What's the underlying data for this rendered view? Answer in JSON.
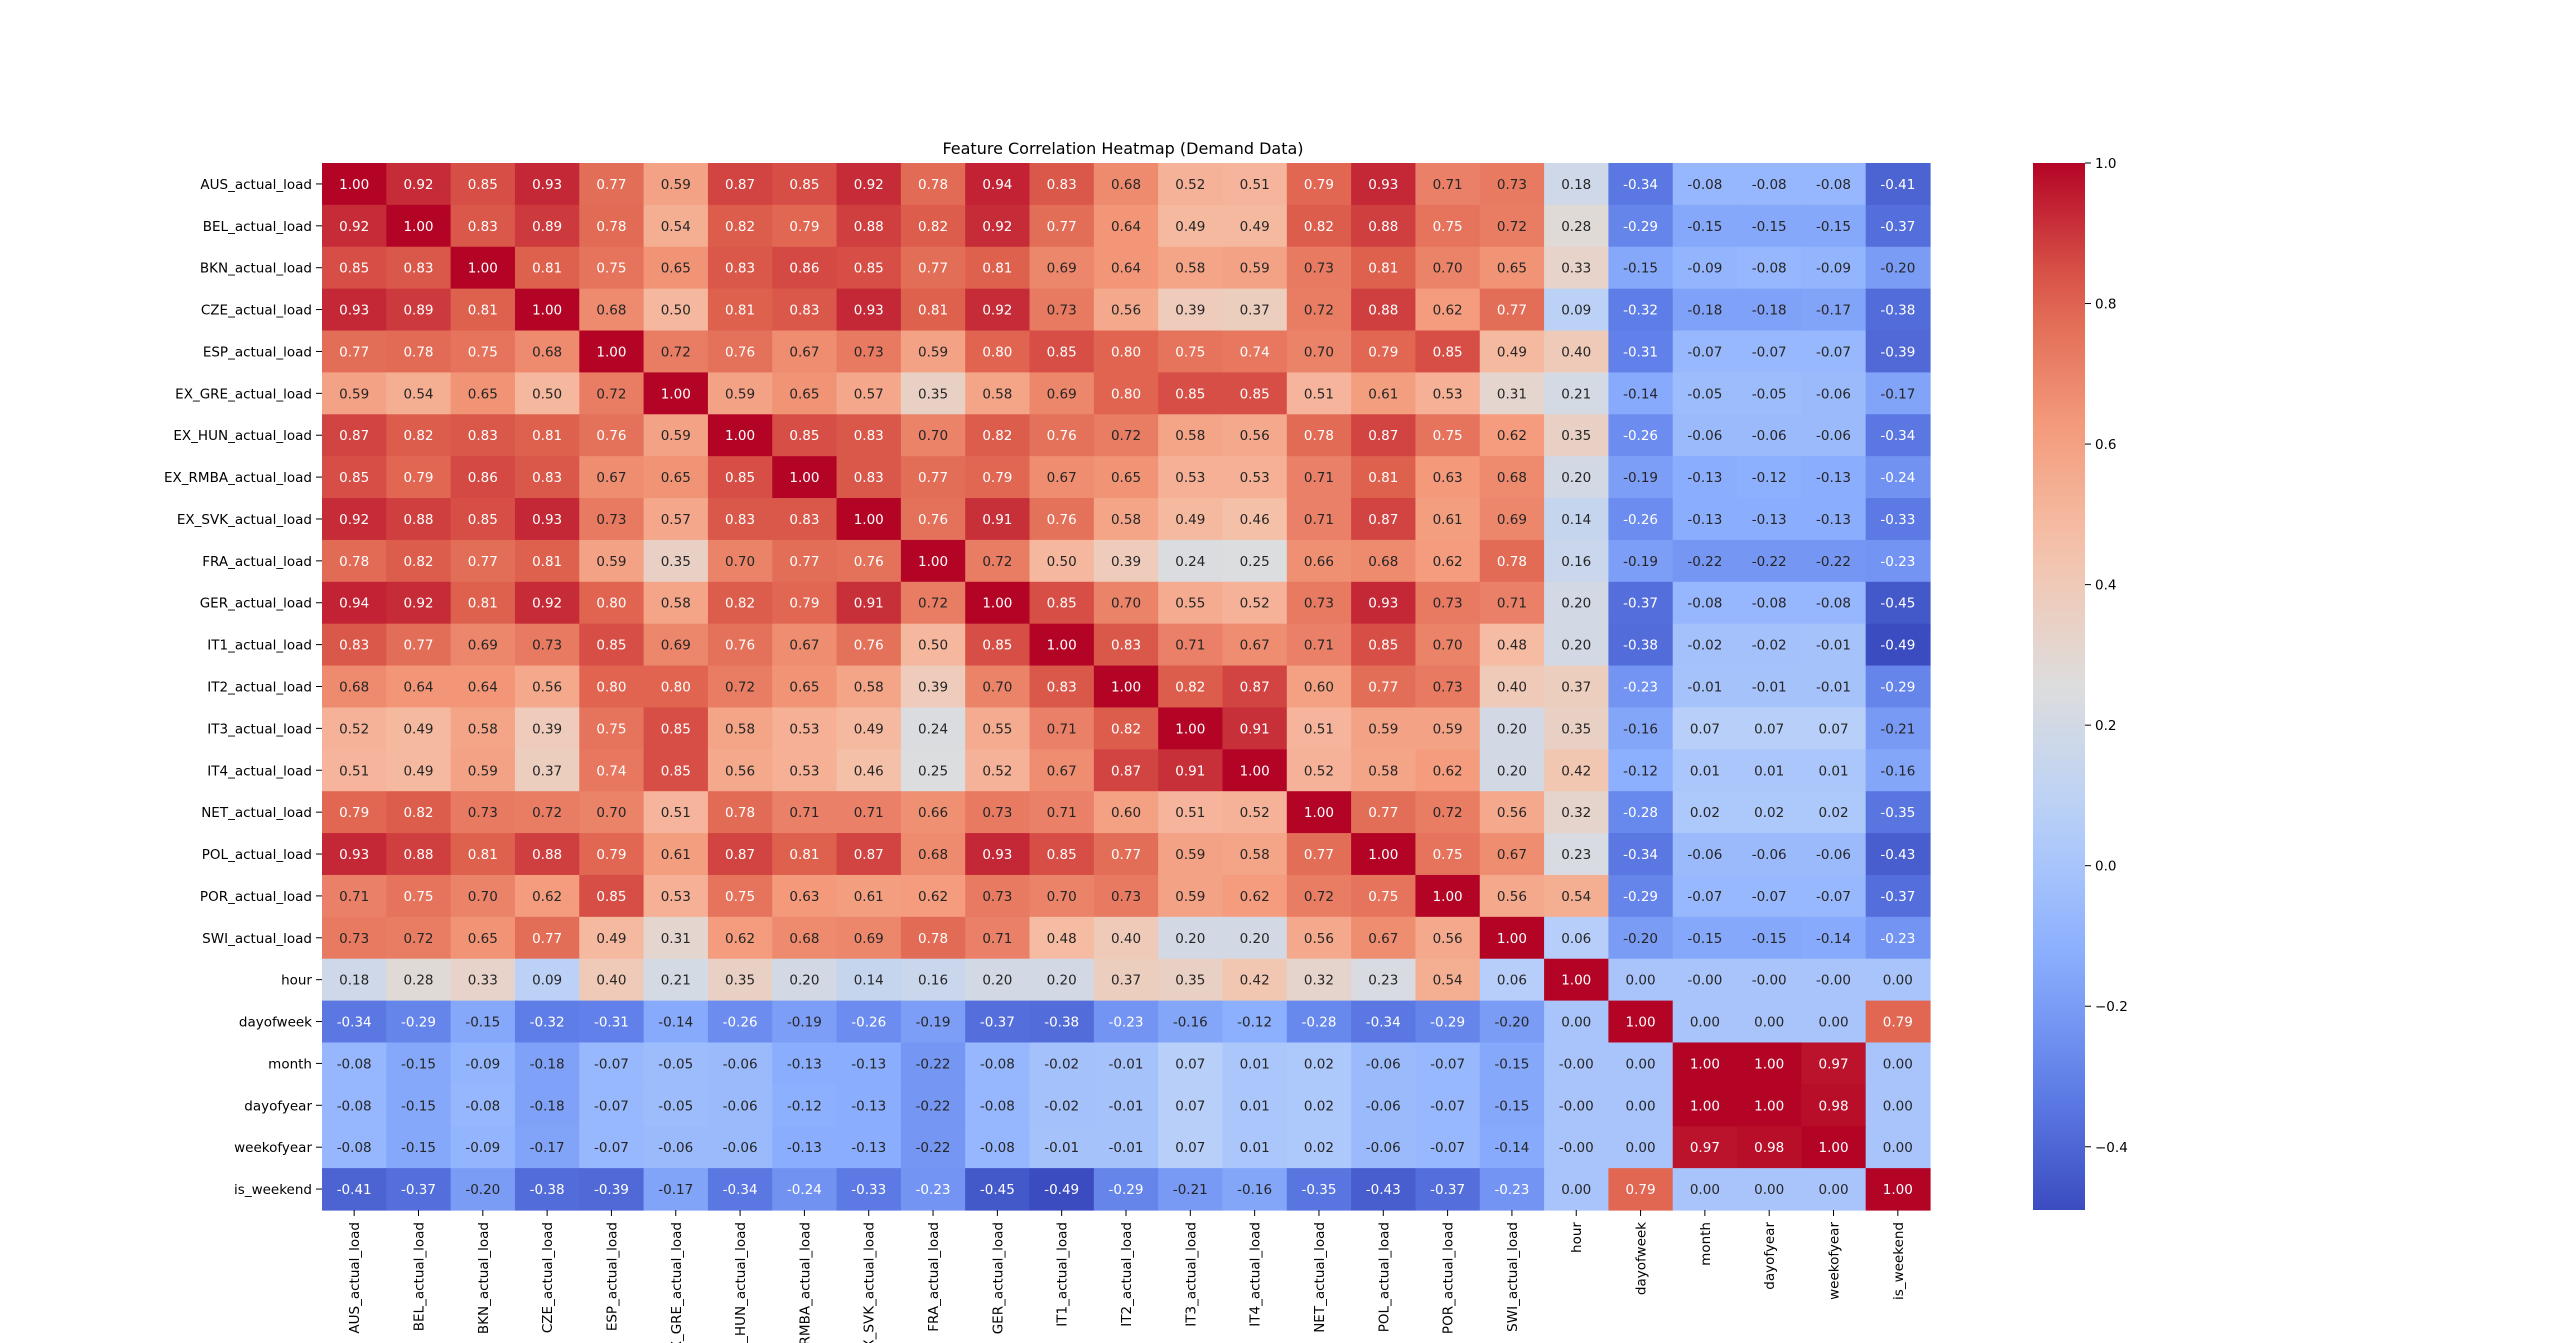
{
  "chart_data": {
    "type": "heatmap",
    "title": "Feature Correlation Heatmap (Demand Data)",
    "xlabel": "",
    "ylabel": "",
    "colormap": "coolwarm",
    "vmin": -0.49,
    "vmax": 1.0,
    "colorbar_ticks": [
      "1.0",
      "0.8",
      "0.6",
      "0.4",
      "0.2",
      "0.0",
      "−0.2",
      "−0.4"
    ],
    "labels": [
      "AUS_actual_load",
      "BEL_actual_load",
      "BKN_actual_load",
      "CZE_actual_load",
      "ESP_actual_load",
      "EX_GRE_actual_load",
      "EX_HUN_actual_load",
      "EX_RMBA_actual_load",
      "EX_SVK_actual_load",
      "FRA_actual_load",
      "GER_actual_load",
      "IT1_actual_load",
      "IT2_actual_load",
      "IT3_actual_load",
      "IT4_actual_load",
      "NET_actual_load",
      "POL_actual_load",
      "POR_actual_load",
      "SWI_actual_load",
      "hour",
      "dayofweek",
      "month",
      "dayofyear",
      "weekofyear",
      "is_weekend"
    ],
    "matrix": [
      [
        "1.00",
        "0.92",
        "0.85",
        "0.93",
        "0.77",
        "0.59",
        "0.87",
        "0.85",
        "0.92",
        "0.78",
        "0.94",
        "0.83",
        "0.68",
        "0.52",
        "0.51",
        "0.79",
        "0.93",
        "0.71",
        "0.73",
        "0.18",
        "-0.34",
        "-0.08",
        "-0.08",
        "-0.08",
        "-0.41"
      ],
      [
        "0.92",
        "1.00",
        "0.83",
        "0.89",
        "0.78",
        "0.54",
        "0.82",
        "0.79",
        "0.88",
        "0.82",
        "0.92",
        "0.77",
        "0.64",
        "0.49",
        "0.49",
        "0.82",
        "0.88",
        "0.75",
        "0.72",
        "0.28",
        "-0.29",
        "-0.15",
        "-0.15",
        "-0.15",
        "-0.37"
      ],
      [
        "0.85",
        "0.83",
        "1.00",
        "0.81",
        "0.75",
        "0.65",
        "0.83",
        "0.86",
        "0.85",
        "0.77",
        "0.81",
        "0.69",
        "0.64",
        "0.58",
        "0.59",
        "0.73",
        "0.81",
        "0.70",
        "0.65",
        "0.33",
        "-0.15",
        "-0.09",
        "-0.08",
        "-0.09",
        "-0.20"
      ],
      [
        "0.93",
        "0.89",
        "0.81",
        "1.00",
        "0.68",
        "0.50",
        "0.81",
        "0.83",
        "0.93",
        "0.81",
        "0.92",
        "0.73",
        "0.56",
        "0.39",
        "0.37",
        "0.72",
        "0.88",
        "0.62",
        "0.77",
        "0.09",
        "-0.32",
        "-0.18",
        "-0.18",
        "-0.17",
        "-0.38"
      ],
      [
        "0.77",
        "0.78",
        "0.75",
        "0.68",
        "1.00",
        "0.72",
        "0.76",
        "0.67",
        "0.73",
        "0.59",
        "0.80",
        "0.85",
        "0.80",
        "0.75",
        "0.74",
        "0.70",
        "0.79",
        "0.85",
        "0.49",
        "0.40",
        "-0.31",
        "-0.07",
        "-0.07",
        "-0.07",
        "-0.39"
      ],
      [
        "0.59",
        "0.54",
        "0.65",
        "0.50",
        "0.72",
        "1.00",
        "0.59",
        "0.65",
        "0.57",
        "0.35",
        "0.58",
        "0.69",
        "0.80",
        "0.85",
        "0.85",
        "0.51",
        "0.61",
        "0.53",
        "0.31",
        "0.21",
        "-0.14",
        "-0.05",
        "-0.05",
        "-0.06",
        "-0.17"
      ],
      [
        "0.87",
        "0.82",
        "0.83",
        "0.81",
        "0.76",
        "0.59",
        "1.00",
        "0.85",
        "0.83",
        "0.70",
        "0.82",
        "0.76",
        "0.72",
        "0.58",
        "0.56",
        "0.78",
        "0.87",
        "0.75",
        "0.62",
        "0.35",
        "-0.26",
        "-0.06",
        "-0.06",
        "-0.06",
        "-0.34"
      ],
      [
        "0.85",
        "0.79",
        "0.86",
        "0.83",
        "0.67",
        "0.65",
        "0.85",
        "1.00",
        "0.83",
        "0.77",
        "0.79",
        "0.67",
        "0.65",
        "0.53",
        "0.53",
        "0.71",
        "0.81",
        "0.63",
        "0.68",
        "0.20",
        "-0.19",
        "-0.13",
        "-0.12",
        "-0.13",
        "-0.24"
      ],
      [
        "0.92",
        "0.88",
        "0.85",
        "0.93",
        "0.73",
        "0.57",
        "0.83",
        "0.83",
        "1.00",
        "0.76",
        "0.91",
        "0.76",
        "0.58",
        "0.49",
        "0.46",
        "0.71",
        "0.87",
        "0.61",
        "0.69",
        "0.14",
        "-0.26",
        "-0.13",
        "-0.13",
        "-0.13",
        "-0.33"
      ],
      [
        "0.78",
        "0.82",
        "0.77",
        "0.81",
        "0.59",
        "0.35",
        "0.70",
        "0.77",
        "0.76",
        "1.00",
        "0.72",
        "0.50",
        "0.39",
        "0.24",
        "0.25",
        "0.66",
        "0.68",
        "0.62",
        "0.78",
        "0.16",
        "-0.19",
        "-0.22",
        "-0.22",
        "-0.22",
        "-0.23"
      ],
      [
        "0.94",
        "0.92",
        "0.81",
        "0.92",
        "0.80",
        "0.58",
        "0.82",
        "0.79",
        "0.91",
        "0.72",
        "1.00",
        "0.85",
        "0.70",
        "0.55",
        "0.52",
        "0.73",
        "0.93",
        "0.73",
        "0.71",
        "0.20",
        "-0.37",
        "-0.08",
        "-0.08",
        "-0.08",
        "-0.45"
      ],
      [
        "0.83",
        "0.77",
        "0.69",
        "0.73",
        "0.85",
        "0.69",
        "0.76",
        "0.67",
        "0.76",
        "0.50",
        "0.85",
        "1.00",
        "0.83",
        "0.71",
        "0.67",
        "0.71",
        "0.85",
        "0.70",
        "0.48",
        "0.20",
        "-0.38",
        "-0.02",
        "-0.02",
        "-0.01",
        "-0.49"
      ],
      [
        "0.68",
        "0.64",
        "0.64",
        "0.56",
        "0.80",
        "0.80",
        "0.72",
        "0.65",
        "0.58",
        "0.39",
        "0.70",
        "0.83",
        "1.00",
        "0.82",
        "0.87",
        "0.60",
        "0.77",
        "0.73",
        "0.40",
        "0.37",
        "-0.23",
        "-0.01",
        "-0.01",
        "-0.01",
        "-0.29"
      ],
      [
        "0.52",
        "0.49",
        "0.58",
        "0.39",
        "0.75",
        "0.85",
        "0.58",
        "0.53",
        "0.49",
        "0.24",
        "0.55",
        "0.71",
        "0.82",
        "1.00",
        "0.91",
        "0.51",
        "0.59",
        "0.59",
        "0.20",
        "0.35",
        "-0.16",
        "0.07",
        "0.07",
        "0.07",
        "-0.21"
      ],
      [
        "0.51",
        "0.49",
        "0.59",
        "0.37",
        "0.74",
        "0.85",
        "0.56",
        "0.53",
        "0.46",
        "0.25",
        "0.52",
        "0.67",
        "0.87",
        "0.91",
        "1.00",
        "0.52",
        "0.58",
        "0.62",
        "0.20",
        "0.42",
        "-0.12",
        "0.01",
        "0.01",
        "0.01",
        "-0.16"
      ],
      [
        "0.79",
        "0.82",
        "0.73",
        "0.72",
        "0.70",
        "0.51",
        "0.78",
        "0.71",
        "0.71",
        "0.66",
        "0.73",
        "0.71",
        "0.60",
        "0.51",
        "0.52",
        "1.00",
        "0.77",
        "0.72",
        "0.56",
        "0.32",
        "-0.28",
        "0.02",
        "0.02",
        "0.02",
        "-0.35"
      ],
      [
        "0.93",
        "0.88",
        "0.81",
        "0.88",
        "0.79",
        "0.61",
        "0.87",
        "0.81",
        "0.87",
        "0.68",
        "0.93",
        "0.85",
        "0.77",
        "0.59",
        "0.58",
        "0.77",
        "1.00",
        "0.75",
        "0.67",
        "0.23",
        "-0.34",
        "-0.06",
        "-0.06",
        "-0.06",
        "-0.43"
      ],
      [
        "0.71",
        "0.75",
        "0.70",
        "0.62",
        "0.85",
        "0.53",
        "0.75",
        "0.63",
        "0.61",
        "0.62",
        "0.73",
        "0.70",
        "0.73",
        "0.59",
        "0.62",
        "0.72",
        "0.75",
        "1.00",
        "0.56",
        "0.54",
        "-0.29",
        "-0.07",
        "-0.07",
        "-0.07",
        "-0.37"
      ],
      [
        "0.73",
        "0.72",
        "0.65",
        "0.77",
        "0.49",
        "0.31",
        "0.62",
        "0.68",
        "0.69",
        "0.78",
        "0.71",
        "0.48",
        "0.40",
        "0.20",
        "0.20",
        "0.56",
        "0.67",
        "0.56",
        "1.00",
        "0.06",
        "-0.20",
        "-0.15",
        "-0.15",
        "-0.14",
        "-0.23"
      ],
      [
        "0.18",
        "0.28",
        "0.33",
        "0.09",
        "0.40",
        "0.21",
        "0.35",
        "0.20",
        "0.14",
        "0.16",
        "0.20",
        "0.20",
        "0.37",
        "0.35",
        "0.42",
        "0.32",
        "0.23",
        "0.54",
        "0.06",
        "1.00",
        "0.00",
        "-0.00",
        "-0.00",
        "-0.00",
        "0.00"
      ],
      [
        "-0.34",
        "-0.29",
        "-0.15",
        "-0.32",
        "-0.31",
        "-0.14",
        "-0.26",
        "-0.19",
        "-0.26",
        "-0.19",
        "-0.37",
        "-0.38",
        "-0.23",
        "-0.16",
        "-0.12",
        "-0.28",
        "-0.34",
        "-0.29",
        "-0.20",
        "0.00",
        "1.00",
        "0.00",
        "0.00",
        "0.00",
        "0.79"
      ],
      [
        "-0.08",
        "-0.15",
        "-0.09",
        "-0.18",
        "-0.07",
        "-0.05",
        "-0.06",
        "-0.13",
        "-0.13",
        "-0.22",
        "-0.08",
        "-0.02",
        "-0.01",
        "0.07",
        "0.01",
        "0.02",
        "-0.06",
        "-0.07",
        "-0.15",
        "-0.00",
        "0.00",
        "1.00",
        "1.00",
        "0.97",
        "0.00"
      ],
      [
        "-0.08",
        "-0.15",
        "-0.08",
        "-0.18",
        "-0.07",
        "-0.05",
        "-0.06",
        "-0.12",
        "-0.13",
        "-0.22",
        "-0.08",
        "-0.02",
        "-0.01",
        "0.07",
        "0.01",
        "0.02",
        "-0.06",
        "-0.07",
        "-0.15",
        "-0.00",
        "0.00",
        "1.00",
        "1.00",
        "0.98",
        "0.00"
      ],
      [
        "-0.08",
        "-0.15",
        "-0.09",
        "-0.17",
        "-0.07",
        "-0.06",
        "-0.06",
        "-0.13",
        "-0.13",
        "-0.22",
        "-0.08",
        "-0.01",
        "-0.01",
        "0.07",
        "0.01",
        "0.02",
        "-0.06",
        "-0.07",
        "-0.14",
        "-0.00",
        "0.00",
        "0.97",
        "0.98",
        "1.00",
        "0.00"
      ],
      [
        "-0.41",
        "-0.37",
        "-0.20",
        "-0.38",
        "-0.39",
        "-0.17",
        "-0.34",
        "-0.24",
        "-0.33",
        "-0.23",
        "-0.45",
        "-0.49",
        "-0.29",
        "-0.21",
        "-0.16",
        "-0.35",
        "-0.43",
        "-0.37",
        "-0.23",
        "0.00",
        "0.79",
        "0.00",
        "0.00",
        "0.00",
        "1.00"
      ]
    ]
  }
}
